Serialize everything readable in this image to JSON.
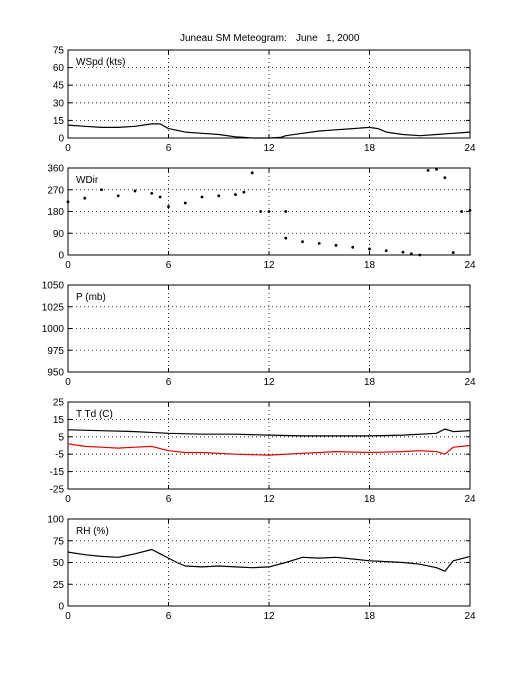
{
  "header": {
    "title": "Juneau SM Meteogram:",
    "date": "June   1, 2000"
  },
  "colors": {
    "background": "#ffffff",
    "axis": "#000000",
    "series_primary": "#000000",
    "series_dewpoint": "#e00000"
  },
  "chart_data": [
    {
      "type": "line",
      "panel_label": "WSpd (kts)",
      "ylim": [
        0,
        75
      ],
      "yticks": [
        "0",
        "15",
        "30",
        "45",
        "60",
        "75"
      ],
      "xlim": [
        0,
        24
      ],
      "xticks": [
        "0",
        "6",
        "12",
        "18",
        "24"
      ],
      "grid": true,
      "series": [
        {
          "color": "#000000",
          "x": [
            0,
            1,
            2,
            3,
            4,
            5,
            5.5,
            6,
            7,
            8,
            9,
            10,
            10.5,
            11,
            12,
            12.7,
            13,
            14,
            15,
            16,
            17,
            18,
            18.5,
            19,
            20,
            21,
            22,
            23,
            24
          ],
          "values": [
            11,
            10,
            9,
            9,
            10,
            12,
            12,
            8,
            5,
            4,
            3,
            1,
            0.5,
            0,
            0,
            0.5,
            2,
            4,
            6,
            7,
            8,
            9,
            8,
            5,
            3,
            2,
            3,
            4,
            5
          ]
        }
      ]
    },
    {
      "type": "scatter",
      "panel_label": "WDir",
      "ylim": [
        0,
        360
      ],
      "yticks": [
        "0",
        "90",
        "180",
        "270",
        "360"
      ],
      "xlim": [
        0,
        24
      ],
      "xticks": [
        "0",
        "6",
        "12",
        "18",
        "24"
      ],
      "grid": true,
      "series": [
        {
          "color": "#000000",
          "x": [
            0,
            1,
            2,
            3,
            4,
            5,
            5.5,
            6,
            7,
            8,
            9,
            10,
            10.5,
            11,
            11.5,
            12,
            13,
            13,
            14,
            15,
            16,
            17,
            18,
            19,
            20,
            20.5,
            21,
            21.5,
            22,
            22.5,
            23,
            23.5,
            24
          ],
          "values": [
            220,
            235,
            270,
            245,
            265,
            255,
            240,
            200,
            215,
            240,
            245,
            250,
            260,
            340,
            180,
            180,
            180,
            70,
            55,
            48,
            40,
            32,
            25,
            18,
            12,
            5,
            0,
            350,
            355,
            320,
            10,
            180,
            185
          ]
        }
      ]
    },
    {
      "type": "line",
      "panel_label": "P (mb)",
      "ylim": [
        950,
        1050
      ],
      "yticks": [
        "950",
        "975",
        "1000",
        "1025",
        "1050"
      ],
      "xlim": [
        0,
        24
      ],
      "xticks": [
        "0",
        "6",
        "12",
        "18",
        "24"
      ],
      "grid": true,
      "series": []
    },
    {
      "type": "line",
      "panel_label": "T Td (C)",
      "ylim": [
        -25,
        25
      ],
      "yticks": [
        "-25",
        "-15",
        "-5",
        "5",
        "15",
        "25"
      ],
      "xlim": [
        0,
        24
      ],
      "xticks": [
        "0",
        "6",
        "12",
        "18",
        "24"
      ],
      "grid": true,
      "series": [
        {
          "color": "#000000",
          "x": [
            0,
            2,
            4,
            6,
            8,
            10,
            12,
            14,
            16,
            18,
            20,
            22,
            22.5,
            23,
            24
          ],
          "values": [
            9,
            8.5,
            8,
            7,
            6.5,
            6.5,
            6,
            5.5,
            5.5,
            5.5,
            6,
            7,
            9.5,
            8,
            8.5
          ]
        },
        {
          "color": "#e00000",
          "x": [
            0,
            1,
            2,
            3,
            4,
            5,
            6,
            7,
            8,
            10,
            12,
            14,
            16,
            18,
            20,
            21,
            22,
            22.5,
            23,
            24
          ],
          "values": [
            1,
            -0.5,
            -1,
            -1.5,
            -1,
            -0.5,
            -3,
            -4,
            -4,
            -5,
            -5.5,
            -4.5,
            -3.5,
            -4,
            -3.5,
            -3,
            -3.5,
            -5,
            -1,
            0
          ]
        }
      ]
    },
    {
      "type": "line",
      "panel_label": "RH (%)",
      "ylim": [
        0,
        100
      ],
      "yticks": [
        "0",
        "25",
        "50",
        "75",
        "100"
      ],
      "xlim": [
        0,
        24
      ],
      "xticks": [
        "0",
        "6",
        "12",
        "18",
        "24"
      ],
      "grid": true,
      "series": [
        {
          "color": "#000000",
          "x": [
            0,
            1,
            2,
            3,
            4,
            5,
            5.5,
            6,
            6.5,
            7,
            8,
            9,
            10,
            11,
            12,
            13,
            14,
            15,
            16,
            17,
            18,
            19,
            20,
            21,
            22,
            22.5,
            23,
            24
          ],
          "values": [
            62,
            59,
            57,
            56,
            60,
            65,
            60,
            55,
            50,
            46,
            45,
            46,
            45,
            44,
            45,
            50,
            56,
            55,
            56,
            54,
            52,
            51,
            50,
            48,
            44,
            40,
            52,
            57
          ]
        }
      ]
    }
  ]
}
